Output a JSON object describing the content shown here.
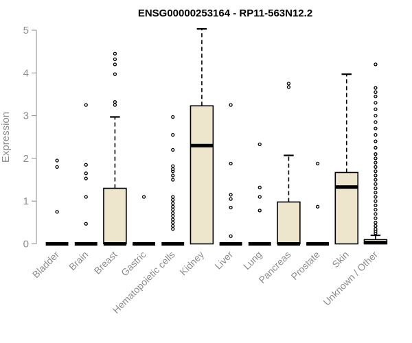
{
  "chart_data": {
    "type": "boxplot",
    "title": "ENSG00000253164 - RP11-563N12.2",
    "ylabel": "Expression",
    "xlabel": "",
    "ylim": [
      0,
      5
    ],
    "yticks": [
      0,
      1,
      2,
      3,
      4,
      5
    ],
    "box_color": "#ede6cd",
    "categories": [
      "Bladder",
      "Brain",
      "Breast",
      "Gastric",
      "Hematopoietic cells",
      "Kidney",
      "Liver",
      "Lung",
      "Pancreas",
      "Prostate",
      "Skin",
      "Unknown / Other"
    ],
    "boxes": [
      {
        "q1": 0,
        "median": 0,
        "q3": 0,
        "whisker_low": 0,
        "whisker_high": 0,
        "outliers": [
          0.75,
          1.8,
          1.95
        ]
      },
      {
        "q1": 0,
        "median": 0,
        "q3": 0,
        "whisker_low": 0,
        "whisker_high": 0,
        "outliers": [
          0.47,
          1.1,
          1.53,
          1.65,
          1.85,
          3.25
        ]
      },
      {
        "q1": 0,
        "median": 0,
        "q3": 1.3,
        "whisker_low": 0,
        "whisker_high": 2.97,
        "outliers": [
          3.25,
          3.32,
          3.97,
          4.2,
          4.32,
          4.45
        ]
      },
      {
        "q1": 0,
        "median": 0,
        "q3": 0,
        "whisker_low": 0,
        "whisker_high": 0,
        "outliers": [
          1.1
        ]
      },
      {
        "q1": 0,
        "median": 0,
        "q3": 0,
        "whisker_low": 0,
        "whisker_high": 0,
        "outliers": [
          0.35,
          0.42,
          0.5,
          0.57,
          0.65,
          0.72,
          0.8,
          0.87,
          0.95,
          1.03,
          1.1,
          1.5,
          1.6,
          1.7,
          1.75,
          1.82,
          2.2,
          2.55,
          2.97
        ]
      },
      {
        "q1": 0,
        "median": 2.3,
        "q3": 3.23,
        "whisker_low": 0,
        "whisker_high": 5.03,
        "outliers": []
      },
      {
        "q1": 0,
        "median": 0,
        "q3": 0,
        "whisker_low": 0,
        "whisker_high": 0,
        "outliers": [
          0.18,
          0.85,
          1.05,
          1.15,
          1.88,
          3.25
        ]
      },
      {
        "q1": 0,
        "median": 0,
        "q3": 0,
        "whisker_low": 0,
        "whisker_high": 0,
        "outliers": [
          0.78,
          1.1,
          1.32,
          2.33
        ]
      },
      {
        "q1": 0,
        "median": 0,
        "q3": 0.98,
        "whisker_low": 0,
        "whisker_high": 2.07,
        "outliers": [
          3.67,
          3.75
        ]
      },
      {
        "q1": 0,
        "median": 0,
        "q3": 0,
        "whisker_low": 0,
        "whisker_high": 0,
        "outliers": [
          0.87,
          1.88
        ]
      },
      {
        "q1": 0,
        "median": 1.33,
        "q3": 1.67,
        "whisker_low": 0,
        "whisker_high": 3.97,
        "outliers": []
      },
      {
        "q1": 0,
        "median": 0.03,
        "q3": 0.1,
        "whisker_low": 0,
        "whisker_high": 0.2,
        "outliers": [
          0.25,
          0.3,
          0.35,
          0.42,
          0.5,
          0.6,
          0.7,
          0.8,
          0.9,
          1.0,
          1.1,
          1.2,
          1.3,
          1.4,
          1.5,
          1.6,
          1.7,
          1.8,
          1.9,
          2.0,
          2.1,
          2.25,
          2.4,
          2.55,
          2.7,
          2.85,
          3.0,
          3.15,
          3.3,
          3.45,
          3.55,
          3.65,
          4.2
        ]
      }
    ]
  }
}
